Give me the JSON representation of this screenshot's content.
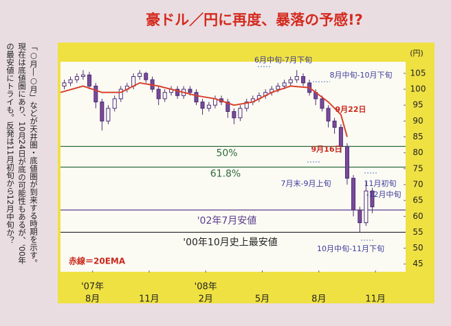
{
  "chart_data": {
    "type": "candlestick",
    "title": "豪ドル／円に再度、暴落の予感!?",
    "y_unit": "(円)",
    "xlim": [
      -1.7,
      16.6
    ],
    "xticks": [
      {
        "value": 0,
        "label": "8月"
      },
      {
        "value": 3,
        "label": "11月"
      },
      {
        "value": 6,
        "label": "2月"
      },
      {
        "value": 9,
        "label": "5月"
      },
      {
        "value": 12,
        "label": "8月"
      },
      {
        "value": 15,
        "label": "11月"
      }
    ],
    "x_year_labels": [
      {
        "value": 0,
        "label": "'07年"
      },
      {
        "value": 6,
        "label": "'08年"
      }
    ],
    "ylim": [
      43,
      108
    ],
    "yticks": [
      45,
      50,
      55,
      60,
      65,
      70,
      75,
      80,
      85,
      90,
      95,
      100,
      105
    ],
    "candles": {
      "up_color": "#ffffff",
      "down_color": "#7a4a9a",
      "edge_color": "#4a2a70",
      "x": [
        -1.5,
        -1.17,
        -0.83,
        -0.5,
        -0.17,
        0.17,
        0.5,
        0.83,
        1.17,
        1.5,
        1.83,
        2.17,
        2.5,
        2.83,
        3.17,
        3.5,
        3.83,
        4.17,
        4.5,
        4.83,
        5.17,
        5.5,
        5.83,
        6.17,
        6.5,
        6.83,
        7.17,
        7.5,
        7.83,
        8.17,
        8.5,
        8.83,
        9.17,
        9.5,
        9.83,
        10.17,
        10.5,
        10.83,
        11.17,
        11.5,
        11.83,
        12.17,
        12.5,
        12.83,
        13.17,
        13.5,
        13.83,
        14.17,
        14.5,
        14.83
      ],
      "open": [
        101,
        102,
        103,
        104,
        104.5,
        101,
        96,
        90,
        94,
        97,
        100,
        101,
        104,
        105,
        103,
        100,
        97,
        99,
        100,
        98,
        100,
        99,
        96,
        94,
        95,
        97,
        96,
        93,
        91,
        94,
        96,
        97,
        98,
        99,
        100,
        101,
        102,
        103,
        104,
        102,
        99,
        97,
        94,
        90,
        88,
        82,
        72,
        62,
        58,
        68
      ],
      "close": [
        102,
        103,
        104,
        104.5,
        101,
        96,
        90,
        94,
        97,
        100,
        101,
        104,
        105,
        103,
        100,
        97,
        99,
        100,
        98,
        100,
        99,
        96,
        94,
        95,
        97,
        96,
        93,
        91,
        94,
        96,
        97,
        98,
        99,
        100,
        101,
        102,
        103,
        104,
        102,
        99,
        97,
        94,
        90,
        88,
        82,
        72,
        62,
        58,
        68,
        63
      ],
      "high": [
        103,
        104,
        105,
        106,
        105.5,
        102,
        97,
        95,
        98,
        101,
        102,
        105,
        106,
        105.5,
        104,
        101,
        100,
        101,
        101,
        101,
        101,
        100,
        97,
        96,
        98,
        98,
        97,
        94,
        95,
        97,
        98,
        99,
        100,
        101,
        102,
        103,
        104,
        106,
        105,
        103,
        100,
        98,
        95,
        91,
        89,
        83,
        73,
        63,
        71,
        69
      ],
      "low": [
        100,
        101,
        102,
        103,
        100,
        94,
        87,
        89,
        93,
        96,
        99,
        100,
        103,
        102,
        99,
        95,
        96,
        98,
        97,
        97,
        98,
        95,
        92,
        93,
        94,
        95,
        91,
        89,
        90,
        93,
        95,
        96,
        97,
        98,
        99,
        100,
        101,
        102,
        101,
        98,
        95,
        93,
        88,
        86,
        80,
        70,
        60,
        55,
        57,
        61
      ]
    },
    "ema": {
      "name": "20EMA",
      "color": "#d8402a",
      "x": [
        -1.7,
        -0.5,
        0.5,
        1.5,
        2.5,
        3.5,
        4.5,
        5.5,
        6.5,
        7.5,
        8.5,
        9.5,
        10.5,
        11.5,
        12.5,
        13.17,
        13.5
      ],
      "values": [
        99,
        101,
        99,
        99,
        102,
        101,
        99.5,
        98,
        97,
        95,
        96,
        99,
        101,
        100.5,
        96,
        92,
        85
      ]
    },
    "levels": [
      {
        "value": 82,
        "label": "50%",
        "color": "#2e6a3a"
      },
      {
        "value": 75.5,
        "label": "61.8%",
        "color": "#2e6a3a"
      },
      {
        "value": 62,
        "label": "'02年7月安値",
        "color": "#5a3a8a"
      },
      {
        "value": 55,
        "label": "'00年10月史上最安値",
        "color": "#222222"
      }
    ],
    "annotations": [
      "6月中旬-7月下旬",
      "8月中旬-10月下旬",
      "9月22日",
      "9月16日",
      "7月末-9月上旬",
      "11月初旬",
      "-12月中旬",
      "10月中旬-11月下旬",
      "赤線＝20EMA"
    ],
    "sidebar_note": [
      "「○月―○月」などが天井圏・底値圏が到来する時期を示す。",
      "現在は底値圏にあり、10月24日が底の可能性もあるが、'00年",
      "の最安値にトライも。反発は11月初旬から12月中旬か？"
    ]
  }
}
